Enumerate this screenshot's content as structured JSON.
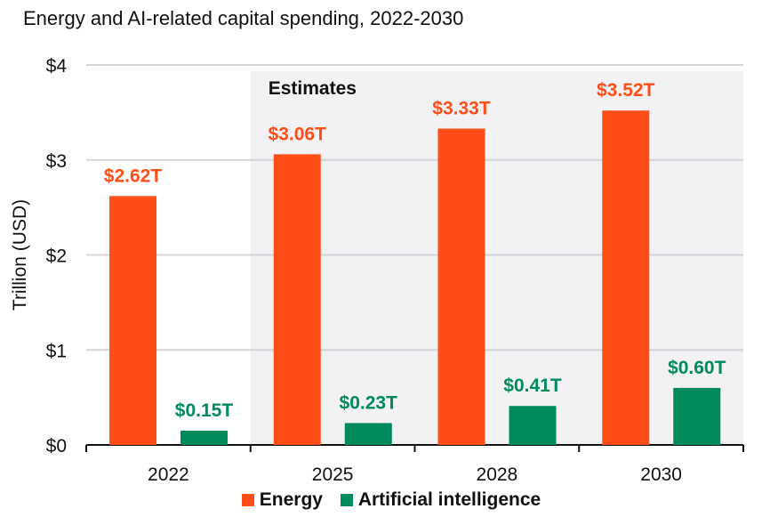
{
  "chart_data": {
    "type": "bar",
    "title": "Energy and AI-related capital spending, 2022-2030",
    "xlabel": "",
    "ylabel": "Trillion (USD)",
    "ylim": [
      0,
      4
    ],
    "yticks": [
      "$0",
      "$1",
      "$2",
      "$3",
      "$4"
    ],
    "categories": [
      "2022",
      "2025",
      "2028",
      "2030"
    ],
    "annotation": "Estimates",
    "legend_position": "bottom",
    "grid": true,
    "series": [
      {
        "name": "Energy",
        "color": "#FF4E17",
        "values": [
          2.62,
          3.06,
          3.33,
          3.52
        ],
        "labels": [
          "$2.62T",
          "$3.06T",
          "$3.33T",
          "$3.52T"
        ]
      },
      {
        "name": "Artificial intelligence",
        "color": "#008A5E",
        "values": [
          0.15,
          0.23,
          0.41,
          0.6
        ],
        "labels": [
          "$0.15T",
          "$0.23T",
          "$0.41T",
          "$0.60T"
        ]
      }
    ]
  }
}
